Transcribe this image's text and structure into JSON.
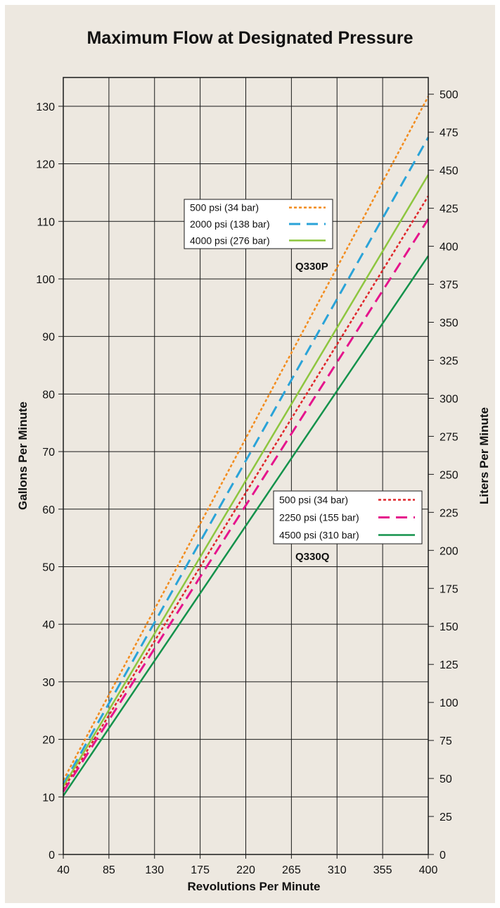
{
  "chart_data": {
    "type": "line",
    "title": "Maximum Flow at Designated Pressure",
    "xlabel": "Revolutions Per Minute",
    "ylabel": "Gallons Per Minute",
    "y2label": "Liters Per Minute",
    "xlim": [
      40,
      400
    ],
    "ylim": [
      0,
      135
    ],
    "y2lim": [
      0,
      511
    ],
    "x_ticks": [
      40,
      85,
      130,
      175,
      220,
      265,
      310,
      355,
      400
    ],
    "y_ticks": [
      0,
      10,
      20,
      30,
      40,
      50,
      60,
      70,
      80,
      90,
      100,
      110,
      120,
      130
    ],
    "y2_ticks": [
      0,
      25,
      50,
      75,
      100,
      125,
      150,
      175,
      200,
      225,
      250,
      275,
      300,
      325,
      350,
      375,
      400,
      425,
      450,
      475,
      500
    ],
    "grid": true,
    "groups": [
      {
        "name": "Q330P",
        "legend_position": "upper-middle",
        "series": [
          {
            "name": "500 psi (34 bar)",
            "color": "#f28c1e",
            "style": "dotted",
            "x": [
              40,
              400
            ],
            "y": [
              12.9,
              131.7
            ]
          },
          {
            "name": "2000 psi (138 bar)",
            "color": "#2aa3d8",
            "style": "dashed",
            "x": [
              40,
              400
            ],
            "y": [
              12.2,
              124.6
            ]
          },
          {
            "name": "4000 psi (276 bar)",
            "color": "#8dc63f",
            "style": "solid",
            "x": [
              40,
              400
            ],
            "y": [
              11.8,
              118.1
            ]
          }
        ]
      },
      {
        "name": "Q330Q",
        "legend_position": "lower-right",
        "series": [
          {
            "name": "500 psi (34 bar)",
            "color": "#e0262b",
            "style": "dotted",
            "x": [
              40,
              400
            ],
            "y": [
              11.3,
              114.4
            ]
          },
          {
            "name": "2250 psi (155 bar)",
            "color": "#e5148c",
            "style": "dashed",
            "x": [
              40,
              400
            ],
            "y": [
              10.9,
              110.4
            ]
          },
          {
            "name": "4500 psi (310 bar)",
            "color": "#13924b",
            "style": "solid",
            "x": [
              40,
              400
            ],
            "y": [
              10.2,
              104.0
            ]
          }
        ]
      }
    ]
  }
}
